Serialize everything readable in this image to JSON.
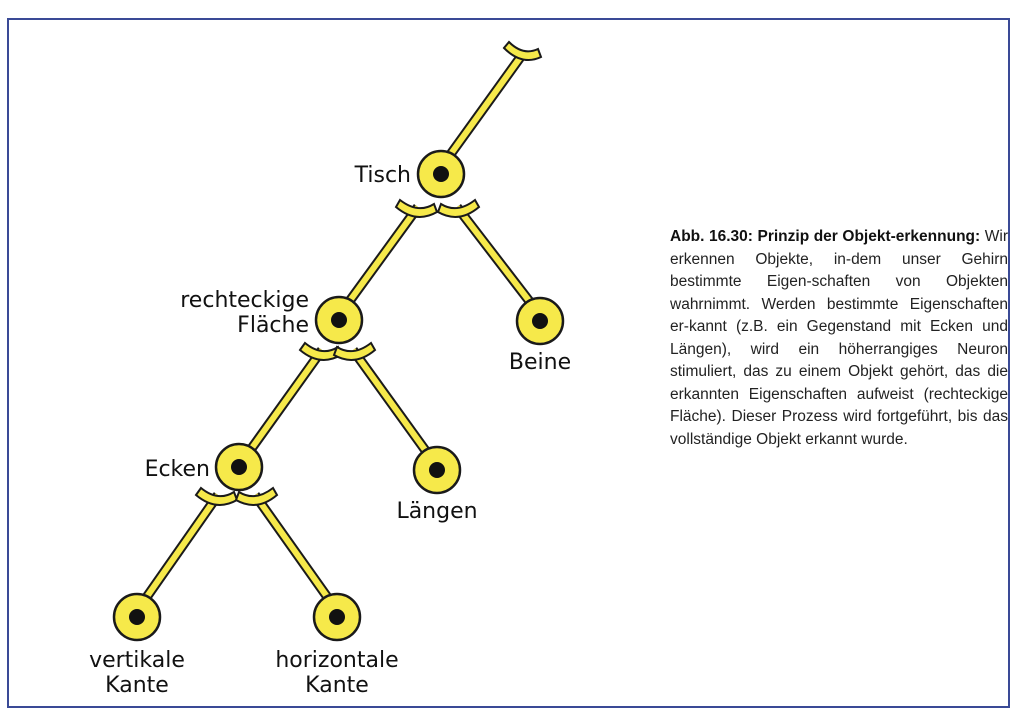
{
  "colors": {
    "neuron_fill": "#f6e94a",
    "outline": "#1a1a1a",
    "nucleus": "#111111",
    "frame": "#3a4a96"
  },
  "labels": {
    "tisch": "Tisch",
    "rechteckige_1": "rechteckige",
    "rechteckige_2": "Fläche",
    "beine": "Beine",
    "ecken": "Ecken",
    "laengen": "Längen",
    "vertikale_1": "vertikale",
    "vertikale_2": "Kante",
    "horizontale_1": "horizontale",
    "horizontale_2": "Kante"
  },
  "caption": {
    "title": "Abb. 16.30: Prinzip der Objekt-erkennung:",
    "body": "Wir erkennen Objekte, in-dem unser Gehirn bestimmte Eigen-schaften von Objekten wahrnimmt. Werden bestimmte Eigenschaften er-kannt (z.B. ein Gegenstand mit Ecken und Längen), wird ein höherrangiges Neuron stimuliert, das zu einem Objekt gehört, das die erkannten Eigenschaften aufweist (rechteckige Fläche). Dieser Prozess wird fortgeführt, bis das vollständige Objekt erkannt wurde."
  }
}
